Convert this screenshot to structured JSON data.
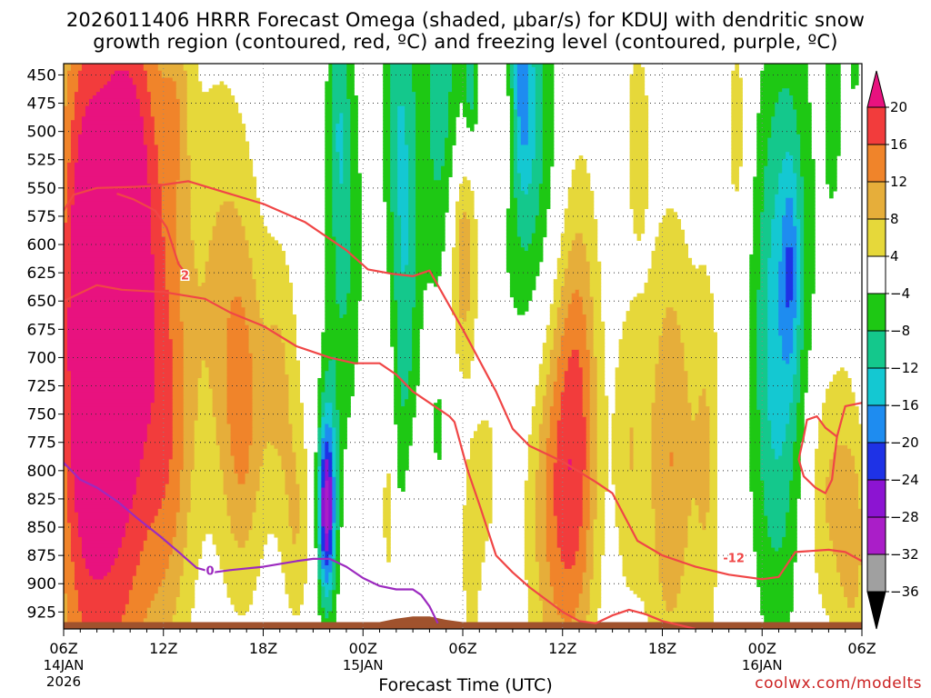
{
  "chart_data": {
    "type": "heatmap",
    "title_line1": "2026011406 HRRR Forecast Omega (shaded, μbar/s) for KDUJ with dendritic snow",
    "title_line2": "growth region (contoured, red, ºC) and freezing level (contoured, purple, ºC)",
    "xlabel": "Forecast Time (UTC)",
    "credit": "coolwx.com/modelts",
    "x_range_hours": [
      0,
      48
    ],
    "x_ticks": [
      {
        "h": 0,
        "label": "06Z",
        "sub1": "14JAN",
        "sub2": "2026"
      },
      {
        "h": 6,
        "label": "12Z",
        "sub1": "",
        "sub2": ""
      },
      {
        "h": 12,
        "label": "18Z",
        "sub1": "",
        "sub2": ""
      },
      {
        "h": 18,
        "label": "00Z",
        "sub1": "15JAN",
        "sub2": ""
      },
      {
        "h": 24,
        "label": "06Z",
        "sub1": "",
        "sub2": ""
      },
      {
        "h": 30,
        "label": "12Z",
        "sub1": "",
        "sub2": ""
      },
      {
        "h": 36,
        "label": "18Z",
        "sub1": "",
        "sub2": ""
      },
      {
        "h": 42,
        "label": "00Z",
        "sub1": "16JAN",
        "sub2": ""
      },
      {
        "h": 48,
        "label": "06Z",
        "sub1": "",
        "sub2": ""
      }
    ],
    "y_range_mb": [
      440,
      940
    ],
    "y_ticks": [
      450,
      475,
      500,
      525,
      550,
      575,
      600,
      625,
      650,
      675,
      700,
      725,
      750,
      775,
      800,
      825,
      850,
      875,
      900,
      925
    ],
    "colorbar": {
      "labels": [
        "20",
        "16",
        "12",
        "8",
        "4",
        "−4",
        "−8",
        "−12",
        "−16",
        "−20",
        "−24",
        "−28",
        "−32",
        "−36"
      ],
      "bins": [
        {
          "lo": 20,
          "hi": 24,
          "color": "#e8127f"
        },
        {
          "lo": 16,
          "hi": 20,
          "color": "#f23c3c"
        },
        {
          "lo": 12,
          "hi": 16,
          "color": "#f0842a"
        },
        {
          "lo": 8,
          "hi": 12,
          "color": "#e6ae3a"
        },
        {
          "lo": 4,
          "hi": 8,
          "color": "#e6d83a"
        },
        {
          "lo": -4,
          "hi": 4,
          "color": "#ffffff"
        },
        {
          "lo": -8,
          "hi": -4,
          "color": "#1ec814"
        },
        {
          "lo": -12,
          "hi": -8,
          "color": "#14c88c"
        },
        {
          "lo": -16,
          "hi": -12,
          "color": "#14c8d2"
        },
        {
          "lo": -20,
          "hi": -16,
          "color": "#1e8cf0"
        },
        {
          "lo": -24,
          "hi": -20,
          "color": "#1e32e6"
        },
        {
          "lo": -28,
          "hi": -24,
          "color": "#8c14d2"
        },
        {
          "lo": -32,
          "hi": -28,
          "color": "#aa1ec8"
        },
        {
          "lo": -36,
          "hi": -32,
          "color": "#a0a0a0"
        },
        {
          "lo": -40,
          "hi": -36,
          "color": "#000000"
        }
      ]
    },
    "omega_blobs": [
      {
        "h": 2.2,
        "p": 700,
        "sh": 2.2,
        "sp": 260,
        "a": 25
      },
      {
        "h": 1.2,
        "p": 650,
        "sh": 0.7,
        "sp": 150,
        "a": 6
      },
      {
        "h": 5.0,
        "p": 660,
        "sh": 1.5,
        "sp": 210,
        "a": 7
      },
      {
        "h": 4.2,
        "p": 510,
        "sh": 1.3,
        "sp": 120,
        "a": 6
      },
      {
        "h": 6.5,
        "p": 775,
        "sh": 1.0,
        "sp": 130,
        "a": 8
      },
      {
        "h": 6.8,
        "p": 470,
        "sh": 0.6,
        "sp": 70,
        "a": 6
      },
      {
        "h": 9.5,
        "p": 640,
        "sh": 1.5,
        "sp": 150,
        "a": 8
      },
      {
        "h": 10.8,
        "p": 760,
        "sh": 0.9,
        "sp": 110,
        "a": 10
      },
      {
        "h": 13.0,
        "p": 720,
        "sh": 0.8,
        "sp": 90,
        "a": 8
      },
      {
        "h": 14.0,
        "p": 850,
        "sh": 0.6,
        "sp": 70,
        "a": 7
      },
      {
        "h": 19.5,
        "p": 830,
        "sh": 0.3,
        "sp": 80,
        "a": 6
      },
      {
        "h": 21.0,
        "p": 870,
        "sh": 0.4,
        "sp": 70,
        "a": 6
      },
      {
        "h": 24.0,
        "p": 610,
        "sh": 0.6,
        "sp": 70,
        "a": 13
      },
      {
        "h": 24.5,
        "p": 870,
        "sh": 0.5,
        "sp": 80,
        "a": 6
      },
      {
        "h": 25.5,
        "p": 800,
        "sh": 0.5,
        "sp": 60,
        "a": 5
      },
      {
        "h": 29.7,
        "p": 820,
        "sh": 1.3,
        "sp": 130,
        "a": 14
      },
      {
        "h": 26.8,
        "p": 500,
        "sh": 0.4,
        "sp": 50,
        "a": 6
      },
      {
        "h": 31.0,
        "p": 740,
        "sh": 0.9,
        "sp": 150,
        "a": 11
      },
      {
        "h": 34.0,
        "p": 780,
        "sh": 0.7,
        "sp": 100,
        "a": 7
      },
      {
        "h": 36.5,
        "p": 790,
        "sh": 1.1,
        "sp": 150,
        "a": 12
      },
      {
        "h": 34.5,
        "p": 500,
        "sh": 0.5,
        "sp": 60,
        "a": 7
      },
      {
        "h": 38.7,
        "p": 790,
        "sh": 0.6,
        "sp": 130,
        "a": 7
      },
      {
        "h": 40.5,
        "p": 500,
        "sh": 0.5,
        "sp": 80,
        "a": 6
      },
      {
        "h": 46.0,
        "p": 820,
        "sh": 1.3,
        "sp": 90,
        "a": 9
      },
      {
        "h": 47.5,
        "p": 870,
        "sh": 0.6,
        "sp": 70,
        "a": 7
      },
      {
        "h": 47.0,
        "p": 520,
        "sh": 0.4,
        "sp": 90,
        "a": 6
      },
      {
        "h": 16.0,
        "p": 790,
        "sh": 0.5,
        "sp": 100,
        "a": -7
      },
      {
        "h": 17.0,
        "p": 600,
        "sh": 0.7,
        "sp": 120,
        "a": -8
      },
      {
        "h": 16.5,
        "p": 480,
        "sh": 0.5,
        "sp": 80,
        "a": -8
      },
      {
        "h": 20.5,
        "p": 620,
        "sh": 0.6,
        "sp": 170,
        "a": -11
      },
      {
        "h": 19.8,
        "p": 470,
        "sh": 0.6,
        "sp": 90,
        "a": -6
      },
      {
        "h": 22.7,
        "p": 470,
        "sh": 1.0,
        "sp": 130,
        "a": -10
      },
      {
        "h": 24.5,
        "p": 450,
        "sh": 0.3,
        "sp": 40,
        "a": -10
      },
      {
        "h": 28.0,
        "p": 520,
        "sh": 1.2,
        "sp": 130,
        "a": -11
      },
      {
        "h": 27.5,
        "p": 460,
        "sh": 0.5,
        "sp": 60,
        "a": -10
      },
      {
        "h": 22.5,
        "p": 765,
        "sh": 0.2,
        "sp": 25,
        "a": -6
      },
      {
        "h": 15.8,
        "p": 835,
        "sh": 0.35,
        "sp": 55,
        "a": -24
      },
      {
        "h": 43.5,
        "p": 650,
        "sh": 1.2,
        "sp": 190,
        "a": -11
      },
      {
        "h": 43.7,
        "p": 620,
        "sh": 0.35,
        "sp": 60,
        "a": -8
      },
      {
        "h": 42.5,
        "p": 720,
        "sh": 1.0,
        "sp": 160,
        "a": -6
      },
      {
        "h": 46.5,
        "p": 470,
        "sh": 0.5,
        "sp": 80,
        "a": -9
      },
      {
        "h": 47.5,
        "p": 440,
        "sh": 0.3,
        "sp": 40,
        "a": -6
      }
    ],
    "contours": [
      {
        "name": "dgz-upper-contour",
        "color": "#f04646",
        "label": "",
        "points": [
          [
            0,
            570
          ],
          [
            0.6,
            556
          ],
          [
            2,
            550
          ],
          [
            4.3,
            549
          ],
          [
            5.6,
            548
          ],
          [
            7.5,
            544
          ],
          [
            9.5,
            553
          ],
          [
            12,
            564
          ],
          [
            14.5,
            580
          ],
          [
            17,
            605
          ],
          [
            18.3,
            622
          ],
          [
            19.8,
            626
          ],
          [
            21,
            628
          ],
          [
            22,
            623
          ],
          [
            24,
            675
          ],
          [
            26,
            730
          ],
          [
            27,
            763
          ],
          [
            28,
            778
          ],
          [
            30,
            792
          ],
          [
            32,
            810
          ],
          [
            33,
            820
          ],
          [
            34.5,
            862
          ],
          [
            36,
            875
          ],
          [
            38,
            885
          ],
          [
            40,
            892
          ],
          [
            42,
            896
          ],
          [
            43,
            894
          ],
          [
            44,
            872
          ],
          [
            46,
            870
          ],
          [
            47,
            872
          ],
          [
            48,
            880
          ]
        ]
      },
      {
        "name": "dgz-lower-contour",
        "color": "#f04646",
        "label": "-12",
        "label_h": 40.3,
        "label_p": 877,
        "points": [
          [
            0,
            650
          ],
          [
            2,
            636
          ],
          [
            3.5,
            640
          ],
          [
            6,
            642
          ],
          [
            8.5,
            648
          ],
          [
            10,
            660
          ],
          [
            12,
            672
          ],
          [
            14,
            690
          ],
          [
            16,
            700
          ],
          [
            17.5,
            705
          ],
          [
            19,
            705
          ],
          [
            20,
            715
          ],
          [
            21,
            730
          ],
          [
            22,
            740
          ],
          [
            23.2,
            752
          ],
          [
            23.5,
            757
          ],
          [
            24.3,
            800
          ],
          [
            25,
            830
          ],
          [
            26,
            875
          ],
          [
            27,
            890
          ],
          [
            28,
            903
          ],
          [
            30,
            925
          ],
          [
            31,
            933
          ],
          [
            32,
            935
          ],
          [
            33,
            928
          ],
          [
            34,
            923
          ],
          [
            35,
            927
          ],
          [
            36,
            933
          ],
          [
            38,
            940
          ]
        ]
      },
      {
        "name": "dgz-loop-contour",
        "color": "#f04646",
        "label": "",
        "points": [
          [
            44.5,
            770
          ],
          [
            44.2,
            790
          ],
          [
            44.5,
            805
          ],
          [
            45.2,
            815
          ],
          [
            45.8,
            820
          ],
          [
            46.2,
            808
          ],
          [
            46.5,
            770
          ],
          [
            47,
            743
          ],
          [
            48,
            740
          ]
        ]
      },
      {
        "name": "dgz-bracket-contour",
        "color": "#f04646",
        "label": "",
        "points": [
          [
            44.5,
            770
          ],
          [
            44.7,
            755
          ],
          [
            45.3,
            752
          ],
          [
            45.8,
            762
          ],
          [
            46.5,
            770
          ]
        ]
      },
      {
        "name": "dgz-left-contour",
        "color": "#f04646",
        "label": "2",
        "label_h": 7.3,
        "label_p": 627,
        "points": [
          [
            3.2,
            555
          ],
          [
            4.2,
            560
          ],
          [
            5.5,
            570
          ],
          [
            6.2,
            585
          ],
          [
            6.9,
            617
          ],
          [
            7.4,
            627
          ]
        ]
      },
      {
        "name": "freezing-level-contour",
        "color": "#9c2abf",
        "label": "0",
        "label_h": 8.8,
        "label_p": 888,
        "points": [
          [
            0,
            793
          ],
          [
            1,
            808
          ],
          [
            2,
            815
          ],
          [
            3.3,
            828
          ],
          [
            4.5,
            843
          ],
          [
            5.8,
            858
          ],
          [
            7,
            873
          ],
          [
            8,
            886
          ],
          [
            9,
            890
          ],
          [
            10,
            888
          ],
          [
            12,
            885
          ],
          [
            14,
            880
          ],
          [
            15,
            878
          ],
          [
            16,
            878
          ],
          [
            17,
            885
          ],
          [
            18,
            895
          ],
          [
            19,
            902
          ],
          [
            20,
            905
          ],
          [
            21,
            905
          ],
          [
            21.5,
            910
          ],
          [
            22,
            920
          ],
          [
            22.5,
            935
          ]
        ]
      }
    ],
    "terrain": {
      "color": "#a0522d",
      "points": [
        [
          0,
          934
        ],
        [
          19,
          934
        ],
        [
          20,
          931
        ],
        [
          21,
          929
        ],
        [
          22,
          929
        ],
        [
          23,
          932
        ],
        [
          24,
          934
        ],
        [
          48,
          934
        ]
      ]
    }
  }
}
